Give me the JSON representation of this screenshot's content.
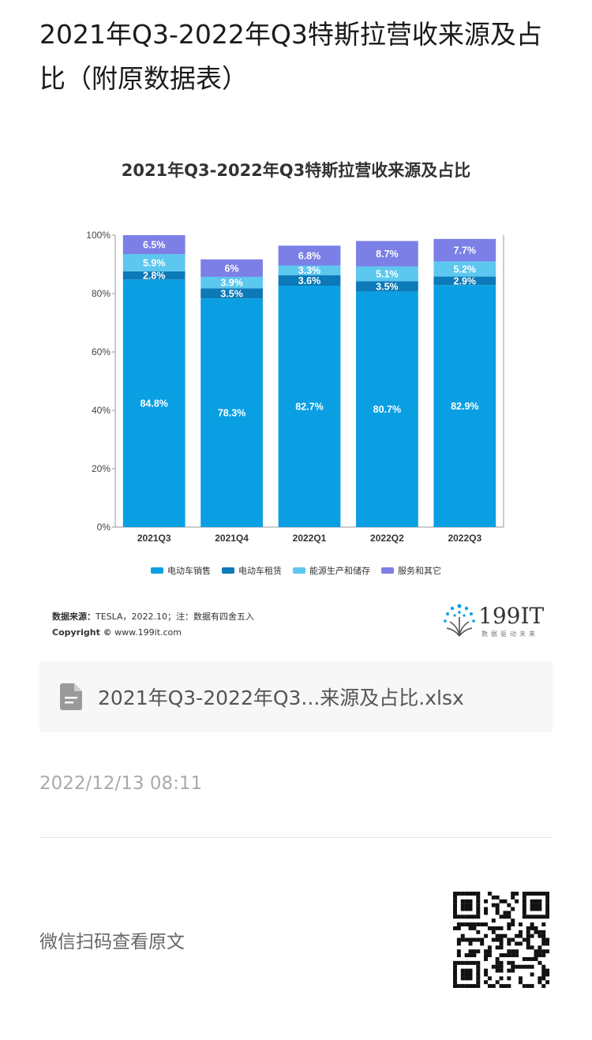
{
  "article": {
    "title": "2021年Q3-2022年Q3特斯拉营收来源及占比（附原数据表）",
    "timestamp": "2022/12/13 08:11",
    "qr_hint": "微信扫码查看原文"
  },
  "attachment": {
    "file_name": "2021年Q3-2022年Q3...来源及占比.xlsx",
    "icon": "document-icon"
  },
  "brand": {
    "name": "199IT",
    "tagline": "数据驱动未来"
  },
  "source": {
    "label": "数据来源：",
    "text": "TESLA，2022.10；注：数据有四舍五入",
    "copyright_label": "Copyright ©",
    "copyright_text": "www.199it.com"
  },
  "chart_data": {
    "type": "bar",
    "stacked": true,
    "title": "2021年Q3-2022年Q3特斯拉营收来源及占比",
    "categories": [
      "2021Q3",
      "2021Q4",
      "2022Q1",
      "2022Q2",
      "2022Q3"
    ],
    "y_ticks": [
      "0%",
      "20%",
      "40%",
      "60%",
      "80%",
      "100%"
    ],
    "ylim": [
      0,
      100
    ],
    "legend_position": "bottom",
    "series": [
      {
        "name": "电动车销售",
        "color": "#0a9fe3",
        "values": [
          84.8,
          78.3,
          82.7,
          80.7,
          82.9
        ],
        "labels": [
          "84.8%",
          "78.3%",
          "82.7%",
          "80.7%",
          "82.9%"
        ]
      },
      {
        "name": "电动车租赁",
        "color": "#0c79b8",
        "values": [
          2.8,
          3.5,
          3.6,
          3.5,
          2.9
        ],
        "labels": [
          "2.8%",
          "3.5%",
          "3.6%",
          "3.5%",
          "2.9%"
        ]
      },
      {
        "name": "能源生产和储存",
        "color": "#5cc7ef",
        "values": [
          5.9,
          3.9,
          3.3,
          5.1,
          5.2
        ],
        "labels": [
          "5.9%",
          "3.9%",
          "3.3%",
          "5.1%",
          "5.2%"
        ]
      },
      {
        "name": "服务和其它",
        "color": "#7b7fe6",
        "values": [
          6.5,
          6,
          6.8,
          8.7,
          7.7
        ],
        "labels": [
          "6.5%",
          "6%",
          "6.8%",
          "8.7%",
          "7.7%"
        ]
      }
    ]
  }
}
